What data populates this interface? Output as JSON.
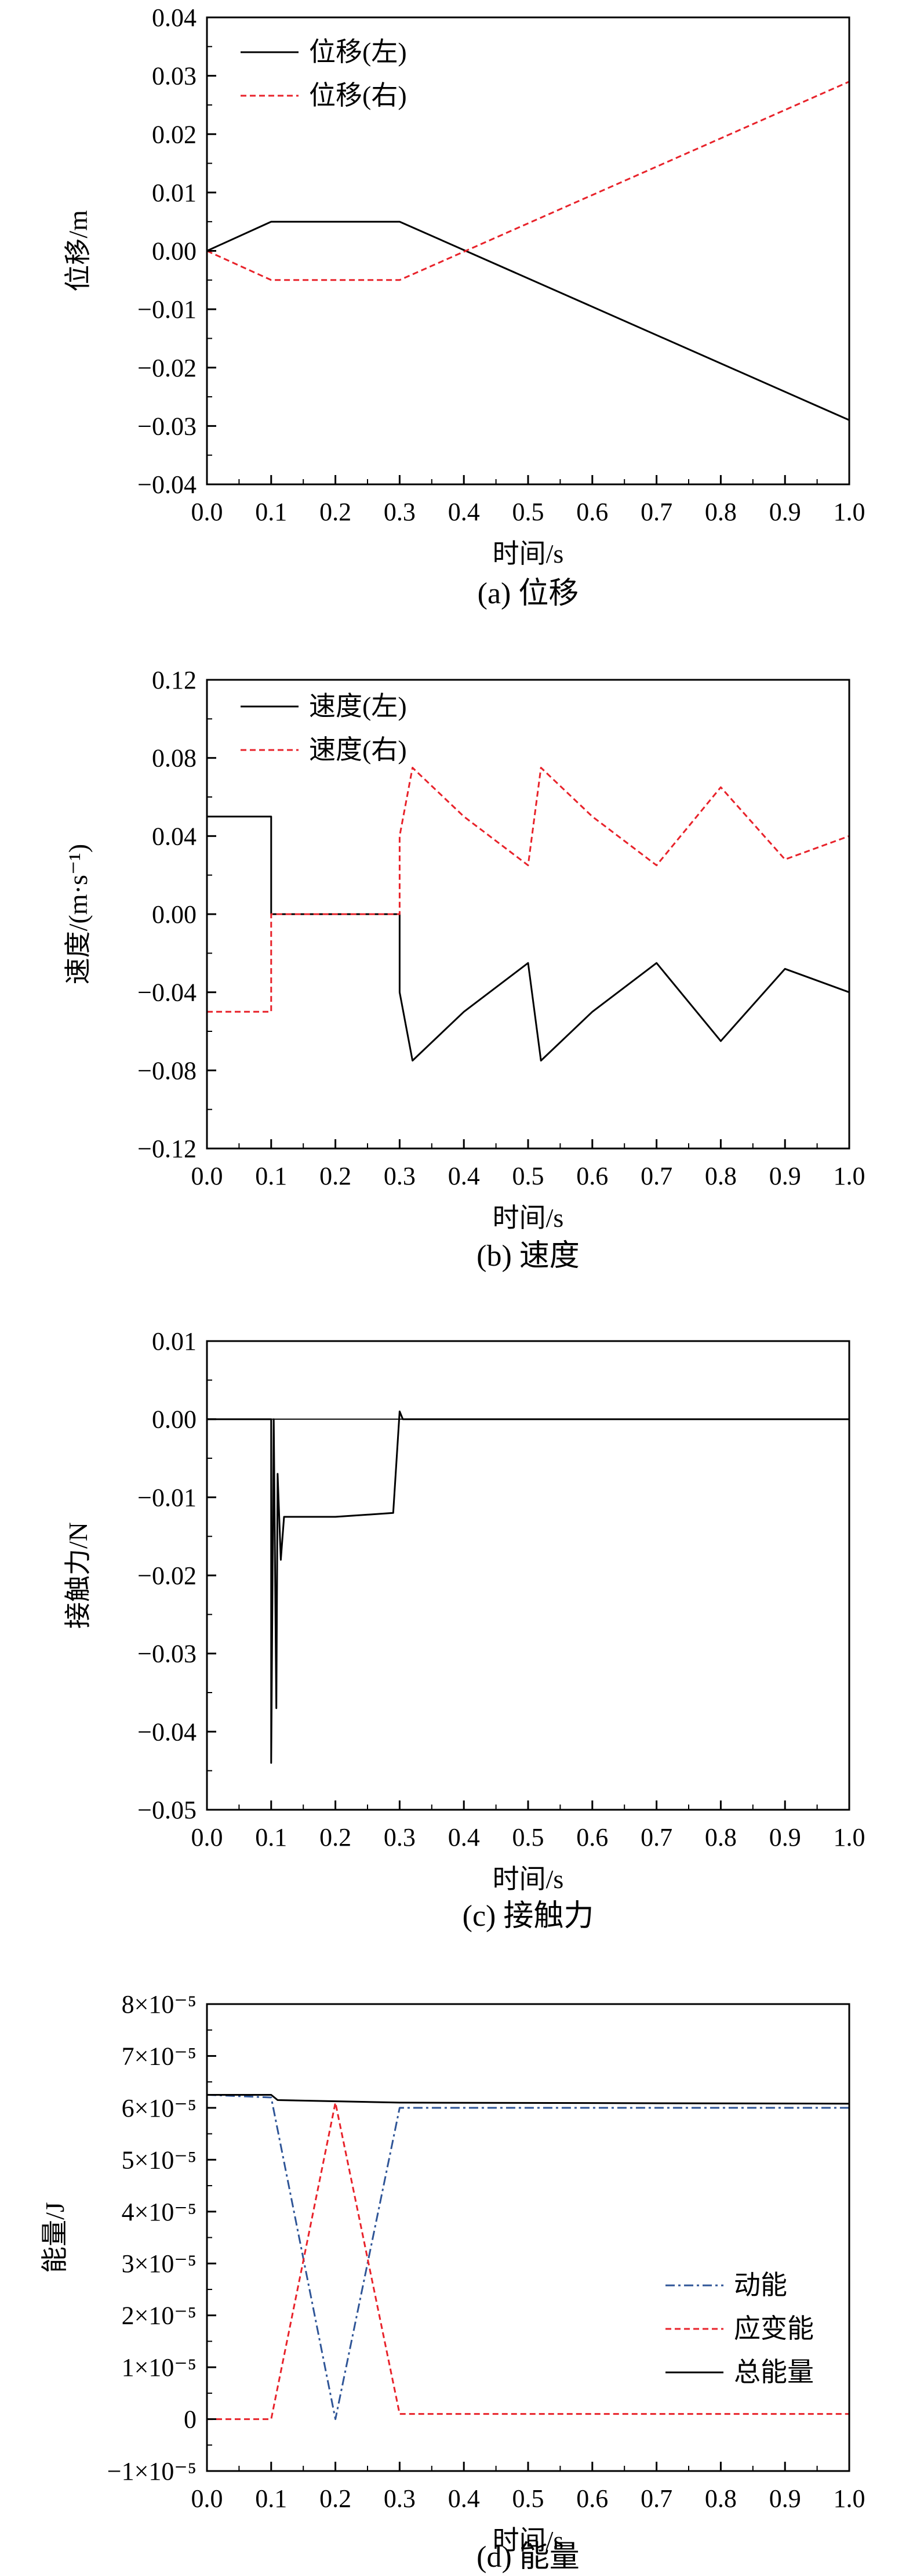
{
  "chart_data": [
    {
      "type": "line",
      "caption": "(a) 位移",
      "xlabel": "时间/s",
      "ylabel": "位移/m",
      "xlim": [
        0.0,
        1.0
      ],
      "ylim": [
        -0.04,
        0.04
      ],
      "xticks": [
        "0.0",
        "0.1",
        "0.2",
        "0.3",
        "0.4",
        "0.5",
        "0.6",
        "0.7",
        "0.8",
        "0.9",
        "1.0"
      ],
      "yticks": [
        "−0.04",
        "−0.03",
        "−0.02",
        "−0.01",
        "0.00",
        "0.01",
        "0.02",
        "0.03",
        "0.04"
      ],
      "legend_position": "top-left",
      "series": [
        {
          "name": "位移(左)",
          "color": "#000000",
          "style": "solid",
          "x": [
            0.0,
            0.1,
            0.3,
            1.0
          ],
          "y": [
            0.0,
            0.005,
            0.005,
            -0.029
          ]
        },
        {
          "name": "位移(右)",
          "color": "#e8222a",
          "style": "dashed",
          "x": [
            0.0,
            0.1,
            0.3,
            1.0
          ],
          "y": [
            0.0,
            -0.005,
            -0.005,
            0.029
          ]
        }
      ]
    },
    {
      "type": "line",
      "caption": "(b) 速度",
      "xlabel": "时间/s",
      "ylabel": "速度/(m·s⁻¹)",
      "xlim": [
        0.0,
        1.0
      ],
      "ylim": [
        -0.12,
        0.12
      ],
      "xticks": [
        "0.0",
        "0.1",
        "0.2",
        "0.3",
        "0.4",
        "0.5",
        "0.6",
        "0.7",
        "0.8",
        "0.9",
        "1.0"
      ],
      "yticks": [
        "−0.12",
        "−0.08",
        "−0.04",
        "0.00",
        "0.04",
        "0.08",
        "0.12"
      ],
      "legend_position": "top-left",
      "series": [
        {
          "name": "速度(左)",
          "color": "#000000",
          "style": "solid",
          "x": [
            0.0,
            0.1,
            0.1,
            0.3,
            0.3,
            0.32,
            0.4,
            0.5,
            0.52,
            0.6,
            0.7,
            0.8,
            0.9,
            1.0
          ],
          "y": [
            0.05,
            0.05,
            0.0,
            0.0,
            -0.04,
            -0.075,
            -0.05,
            -0.025,
            -0.075,
            -0.05,
            -0.025,
            -0.065,
            -0.028,
            -0.04
          ]
        },
        {
          "name": "速度(右)",
          "color": "#e8222a",
          "style": "dashed",
          "x": [
            0.0,
            0.1,
            0.1,
            0.3,
            0.3,
            0.32,
            0.4,
            0.5,
            0.52,
            0.6,
            0.7,
            0.8,
            0.9,
            1.0
          ],
          "y": [
            -0.05,
            -0.05,
            0.0,
            0.0,
            0.04,
            0.075,
            0.05,
            0.025,
            0.075,
            0.05,
            0.025,
            0.065,
            0.028,
            0.04
          ]
        }
      ]
    },
    {
      "type": "line",
      "caption": "(c) 接触力",
      "xlabel": "时间/s",
      "ylabel": "接触力/N",
      "xlim": [
        0.0,
        1.0
      ],
      "ylim": [
        -0.05,
        0.01
      ],
      "xticks": [
        "0.0",
        "0.1",
        "0.2",
        "0.3",
        "0.4",
        "0.5",
        "0.6",
        "0.7",
        "0.8",
        "0.9",
        "1.0"
      ],
      "yticks": [
        "−0.05",
        "−0.04",
        "−0.03",
        "−0.02",
        "−0.01",
        "0.00",
        "0.01"
      ],
      "series": [
        {
          "color": "#000000",
          "style": "solid",
          "x": [
            0.0,
            0.1,
            0.1,
            0.104,
            0.108,
            0.11,
            0.115,
            0.12,
            0.13,
            0.2,
            0.29,
            0.3,
            0.305,
            1.0
          ],
          "y": [
            0.0,
            0.0,
            -0.044,
            0.0,
            -0.037,
            -0.007,
            -0.018,
            -0.0125,
            -0.0125,
            -0.0125,
            -0.012,
            0.001,
            0.0,
            0.0
          ]
        }
      ]
    },
    {
      "type": "line",
      "caption": "(d) 能量",
      "xlabel": "时间/s",
      "ylabel": "能量/J",
      "xlim": [
        0.0,
        1.0
      ],
      "ylim": [
        -1e-05,
        8e-05
      ],
      "xticks": [
        "0.0",
        "0.1",
        "0.2",
        "0.3",
        "0.4",
        "0.5",
        "0.6",
        "0.7",
        "0.8",
        "0.9",
        "1.0"
      ],
      "yticks": [
        "−1×10⁻⁵",
        "0",
        "1×10⁻⁵",
        "2×10⁻⁵",
        "3×10⁻⁵",
        "4×10⁻⁵",
        "5×10⁻⁵",
        "6×10⁻⁵",
        "7×10⁻⁵",
        "8×10⁻⁵"
      ],
      "legend_position": "bottom-right",
      "series": [
        {
          "name": "动能",
          "color": "#2f5597",
          "style": "dashdot",
          "x": [
            0.0,
            0.1,
            0.2,
            0.3,
            0.31,
            1.0
          ],
          "y": [
            6.25e-05,
            6.2e-05,
            0.0,
            6e-05,
            6e-05,
            6e-05
          ]
        },
        {
          "name": "应变能",
          "color": "#e8222a",
          "style": "dashed",
          "x": [
            0.0,
            0.1,
            0.2,
            0.3,
            0.31,
            1.0
          ],
          "y": [
            0.0,
            0.0,
            6.1e-05,
            1e-06,
            1e-06,
            1e-06
          ]
        },
        {
          "name": "总能量",
          "color": "#000000",
          "style": "solid",
          "x": [
            0.0,
            0.1,
            0.11,
            0.3,
            1.0
          ],
          "y": [
            6.25e-05,
            6.25e-05,
            6.15e-05,
            6.1e-05,
            6.08e-05
          ]
        }
      ]
    }
  ]
}
